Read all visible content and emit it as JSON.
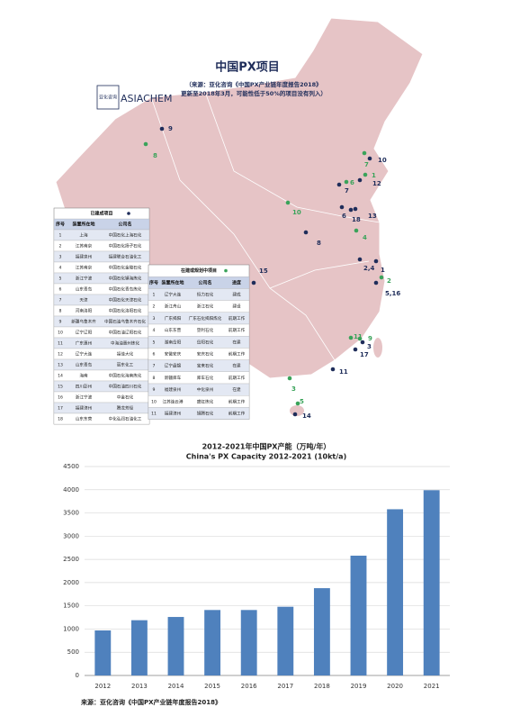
{
  "map": {
    "title": "中国PX项目",
    "source": "（来源：亚化咨询《中国PX产业链年度报告2018》",
    "note": "更新至2018年3月，可能性低于50%的项目没有列入）",
    "logo_cn": "亚化咨询",
    "logo_en": "ASIACHEM",
    "built_color": "#1f2d5a",
    "planned_color": "#3aa35a",
    "markers": [
      {
        "label": "9",
        "color": "#1f2d5a"
      },
      {
        "label": "8",
        "color": "#3aa35a"
      },
      {
        "label": "10",
        "color": "#3aa35a"
      },
      {
        "label": "8",
        "color": "#1f2d5a"
      },
      {
        "label": "7",
        "color": "#3aa35a"
      },
      {
        "label": "10",
        "color": "#1f2d5a"
      },
      {
        "label": "1",
        "color": "#3aa35a"
      },
      {
        "label": "12",
        "color": "#1f2d5a"
      },
      {
        "label": "6",
        "color": "#3aa35a"
      },
      {
        "label": "7",
        "color": "#1f2d5a"
      },
      {
        "label": "13",
        "color": "#1f2d5a"
      },
      {
        "label": "6",
        "color": "#1f2d5a"
      },
      {
        "label": "18",
        "color": "#1f2d5a"
      },
      {
        "label": "4",
        "color": "#3aa35a"
      },
      {
        "label": "2,4",
        "color": "#1f2d5a"
      },
      {
        "label": "1",
        "color": "#1f2d5a"
      },
      {
        "label": "2",
        "color": "#3aa35a"
      },
      {
        "label": "5,16",
        "color": "#1f2d5a"
      },
      {
        "label": "15",
        "color": "#1f2d5a"
      },
      {
        "label": "11",
        "color": "#3aa35a"
      },
      {
        "label": "9",
        "color": "#3aa35a"
      },
      {
        "label": "3",
        "color": "#1f2d5a"
      },
      {
        "label": "17",
        "color": "#1f2d5a"
      },
      {
        "label": "11",
        "color": "#1f2d5a"
      },
      {
        "label": "3",
        "color": "#3aa35a"
      },
      {
        "label": "5",
        "color": "#3aa35a"
      },
      {
        "label": "14",
        "color": "#1f2d5a"
      }
    ],
    "built_table": {
      "title": "已建成项目",
      "header": [
        "序号",
        "装置所在地",
        "公司名"
      ],
      "rows": [
        [
          "1",
          "上海",
          "中国石化上海石化"
        ],
        [
          "2",
          "江苏南京",
          "中国石化扬子石化"
        ],
        [
          "3",
          "福建泉州",
          "福建联合石油化工"
        ],
        [
          "4",
          "江苏南京",
          "中国石化金陵石化"
        ],
        [
          "5",
          "浙江宁波",
          "中国石化镇海炼化"
        ],
        [
          "6",
          "山东青岛",
          "中国石化青岛炼化"
        ],
        [
          "7",
          "天津",
          "中国石化天津石化"
        ],
        [
          "8",
          "河南洛阳",
          "中国石化洛阳石化"
        ],
        [
          "9",
          "新疆乌鲁木齐",
          "中国石油乌鲁木齐石化"
        ],
        [
          "10",
          "辽宁辽阳",
          "中国石油辽阳石化"
        ],
        [
          "11",
          "广东惠州",
          "中海油惠州炼化"
        ],
        [
          "12",
          "辽宁大连",
          "福佳大化"
        ],
        [
          "13",
          "山东青岛",
          "丽东化工"
        ],
        [
          "14",
          "海南",
          "中国石化海南炼化"
        ],
        [
          "15",
          "四川彭州",
          "中国石油四川石化"
        ],
        [
          "16",
          "浙江宁波",
          "中金石化"
        ],
        [
          "17",
          "福建漳州",
          "腾龙芳烃"
        ],
        [
          "18",
          "山东东营",
          "中化弘润石油化工"
        ]
      ]
    },
    "planned_table": {
      "title": "在建或规划中项目",
      "header": [
        "序号",
        "装置所在地",
        "公司名",
        "进度"
      ],
      "rows": [
        [
          "1",
          "辽宁大连",
          "恒力石化",
          "建成"
        ],
        [
          "2",
          "浙江舟山",
          "浙江石化",
          "建设"
        ],
        [
          "3",
          "广东揭阳",
          "广东石化揭阳炼化",
          "前期工作"
        ],
        [
          "4",
          "山东东营",
          "垦利石化",
          "前期工作"
        ],
        [
          "5",
          "湖南岳阳",
          "岳阳石化",
          "在建"
        ],
        [
          "6",
          "安徽安庆",
          "安庆石化",
          "前期工作"
        ],
        [
          "7",
          "辽宁盘锦",
          "宝来石化",
          "在建"
        ],
        [
          "8",
          "新疆库车",
          "库车石化",
          "前期工作"
        ],
        [
          "9",
          "福建泉州",
          "中化泉州",
          "在建"
        ],
        [
          "10",
          "江苏连云港",
          "盛虹炼化",
          "前期工作"
        ],
        [
          "11",
          "福建漳州",
          "旭腾石化",
          "前期工作"
        ]
      ]
    }
  },
  "chart_data": {
    "type": "bar",
    "title": "2012-2021年中国PX产能（万吨/年）",
    "subtitle": "China's  PX Capacity 2012-2021 (10kt/a)",
    "categories": [
      "2012",
      "2013",
      "2014",
      "2015",
      "2016",
      "2017",
      "2018",
      "2019",
      "2020",
      "2021"
    ],
    "values": [
      970,
      1190,
      1260,
      1410,
      1410,
      1480,
      1880,
      2580,
      3580,
      3990
    ],
    "color": "#4f81bd",
    "ylim": [
      0,
      4500
    ],
    "yticks": [
      0,
      500,
      1000,
      1500,
      2000,
      2500,
      3000,
      3500,
      4000,
      4500
    ],
    "grid": true,
    "source": "来源：亚化咨询《中国PX产业链年度报告2018》"
  }
}
